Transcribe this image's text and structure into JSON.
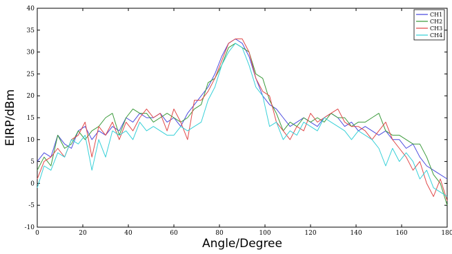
{
  "chart_data": {
    "type": "line",
    "title": "",
    "xlabel": "Angle/Degree",
    "ylabel": "EIRP/dBm",
    "xlim": [
      0,
      180
    ],
    "ylim": [
      -10,
      40
    ],
    "xticks": [
      "0",
      "20",
      "40",
      "60",
      "80",
      "100",
      "120",
      "140",
      "160",
      "180"
    ],
    "yticks": [
      "-10",
      "-5",
      "0",
      "5",
      "10",
      "15",
      "20",
      "25",
      "30",
      "35",
      "40"
    ],
    "grid": false,
    "legend_position": "top-right",
    "x": [
      0,
      3,
      6,
      9,
      12,
      15,
      18,
      21,
      24,
      27,
      30,
      33,
      36,
      39,
      42,
      45,
      48,
      51,
      54,
      57,
      60,
      63,
      66,
      69,
      72,
      75,
      78,
      81,
      84,
      87,
      90,
      93,
      96,
      99,
      102,
      105,
      108,
      111,
      114,
      117,
      120,
      123,
      126,
      129,
      132,
      135,
      138,
      141,
      144,
      147,
      150,
      153,
      156,
      159,
      162,
      165,
      168,
      171,
      174,
      177,
      180
    ],
    "series": [
      {
        "name": "CH1",
        "color": "#4a4adf",
        "values": [
          5,
          7,
          6,
          11,
          9,
          8,
          12,
          13,
          10,
          12,
          11,
          13,
          12,
          15,
          14,
          16,
          15,
          15,
          16,
          14,
          15,
          13,
          16,
          18,
          20,
          22,
          25,
          29,
          32,
          33,
          32,
          29,
          24,
          20,
          18,
          17,
          15,
          13,
          14,
          15,
          14,
          13,
          15,
          16,
          15,
          13,
          14,
          12,
          13,
          12,
          11,
          12,
          10,
          10,
          8,
          9,
          6,
          4,
          3,
          2,
          1
        ]
      },
      {
        "name": "CH2",
        "color": "#3a9a3a",
        "values": [
          3,
          6,
          4,
          11,
          8,
          9,
          12,
          10,
          12,
          13,
          15,
          16,
          11,
          15,
          17,
          16,
          16,
          14,
          15,
          16,
          15,
          14,
          15,
          17,
          18,
          23,
          24,
          27,
          31,
          32,
          31,
          30,
          25,
          24,
          19,
          16,
          12,
          14,
          13,
          15,
          14,
          15,
          14,
          16,
          15,
          15,
          13,
          14,
          14,
          15,
          16,
          12,
          11,
          11,
          10,
          9,
          9,
          6,
          2,
          0,
          -5
        ]
      },
      {
        "name": "CH3",
        "color": "#e04848",
        "values": [
          1,
          5,
          6,
          8,
          6,
          10,
          11,
          14,
          6,
          13,
          11,
          14,
          10,
          14,
          12,
          15,
          17,
          15,
          16,
          12,
          17,
          14,
          10,
          19,
          19,
          21,
          24,
          28,
          32,
          33,
          33,
          30,
          24,
          21,
          20,
          14,
          12,
          10,
          13,
          12,
          16,
          14,
          15,
          16,
          17,
          14,
          13,
          13,
          12,
          10,
          12,
          14,
          10,
          8,
          6,
          3,
          5,
          0,
          -3,
          1,
          -4
        ]
      },
      {
        "name": "CH4",
        "color": "#36d0d8",
        "values": [
          -1,
          4,
          3,
          7,
          6,
          10,
          9,
          11,
          3,
          10,
          6,
          12,
          11,
          12,
          10,
          14,
          12,
          13,
          12,
          11,
          11,
          13,
          12,
          13,
          14,
          19,
          22,
          27,
          30,
          32,
          31,
          27,
          22,
          20,
          13,
          14,
          10,
          12,
          11,
          14,
          13,
          12,
          15,
          14,
          13,
          12,
          10,
          12,
          11,
          10,
          8,
          4,
          8,
          5,
          7,
          5,
          1,
          3,
          -1,
          -2,
          -3
        ]
      }
    ]
  }
}
